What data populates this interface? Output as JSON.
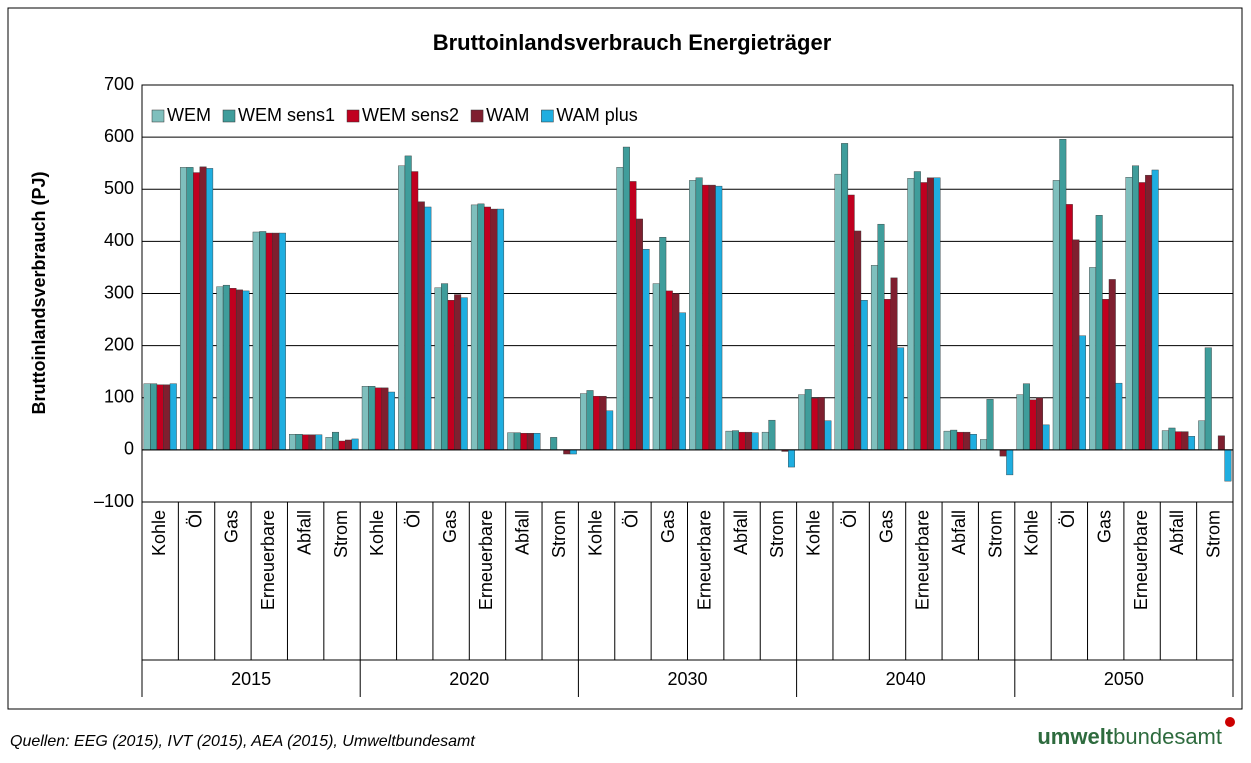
{
  "chart_data": {
    "type": "bar",
    "title": "Bruttoinlandsverbrauch Energieträger",
    "y_label": "Bruttoinlandsverbrauch (PJ)",
    "category_groups": [
      "2015",
      "2020",
      "2030",
      "2040",
      "2050"
    ],
    "categories": [
      "Kohle",
      "Öl",
      "Gas",
      "Erneuerbare",
      "Abfall",
      "Strom",
      "Kohle",
      "Öl",
      "Gas",
      "Erneuerbare",
      "Abfall",
      "Strom",
      "Kohle",
      "Öl",
      "Gas",
      "Erneuerbare",
      "Abfall",
      "Strom",
      "Kohle",
      "Öl",
      "Gas",
      "Erneuerbare",
      "Abfall",
      "Strom",
      "Kohle",
      "Öl",
      "Gas",
      "Erneuerbare",
      "Abfall",
      "Strom"
    ],
    "series": [
      {
        "name": "WEM",
        "color": "#7fbfbd",
        "values": [
          127,
          542,
          313,
          418,
          30,
          24,
          122,
          545,
          311,
          470,
          33,
          0,
          108,
          542,
          319,
          517,
          36,
          34,
          106,
          529,
          354,
          521,
          36,
          20,
          106,
          517,
          350,
          523,
          37,
          56
        ]
      },
      {
        "name": "WEM sens1",
        "color": "#3f9d9b",
        "values": [
          127,
          542,
          316,
          419,
          30,
          34,
          122,
          564,
          319,
          472,
          33,
          24,
          114,
          581,
          408,
          522,
          37,
          57,
          116,
          588,
          433,
          534,
          38,
          97,
          127,
          596,
          450,
          545,
          42,
          196
        ]
      },
      {
        "name": "WEM sens2",
        "color": "#c0001f",
        "values": [
          125,
          532,
          310,
          416,
          29,
          17,
          119,
          534,
          287,
          466,
          32,
          0,
          103,
          515,
          305,
          508,
          34,
          0,
          99,
          489,
          289,
          513,
          34,
          0,
          96,
          471,
          289,
          513,
          35,
          0
        ]
      },
      {
        "name": "WAM",
        "color": "#7f1f2f",
        "values": [
          125,
          543,
          307,
          416,
          29,
          19,
          119,
          476,
          298,
          462,
          32,
          -8,
          103,
          443,
          300,
          508,
          34,
          -3,
          101,
          420,
          330,
          522,
          34,
          -12,
          100,
          403,
          327,
          527,
          35,
          27
        ]
      },
      {
        "name": "WAM plus",
        "color": "#1faee0",
        "values": [
          127,
          540,
          305,
          416,
          29,
          21,
          111,
          466,
          292,
          462,
          32,
          -8,
          75,
          385,
          263,
          506,
          33,
          -33,
          56,
          287,
          196,
          522,
          30,
          -48,
          48,
          219,
          128,
          537,
          26,
          -60
        ]
      }
    ],
    "ylim": [
      -100,
      700
    ],
    "yticks": [
      {
        "value": -100,
        "label": "–100"
      },
      0,
      100,
      200,
      300,
      400,
      500,
      600,
      700
    ],
    "grid": true,
    "legend": "top-left",
    "source": "Quellen: EEG (2015), IVT (2015), AEA (2015), Umweltbundesamt",
    "logo_bold": "umwelt",
    "logo_regular": "bundesamt"
  }
}
